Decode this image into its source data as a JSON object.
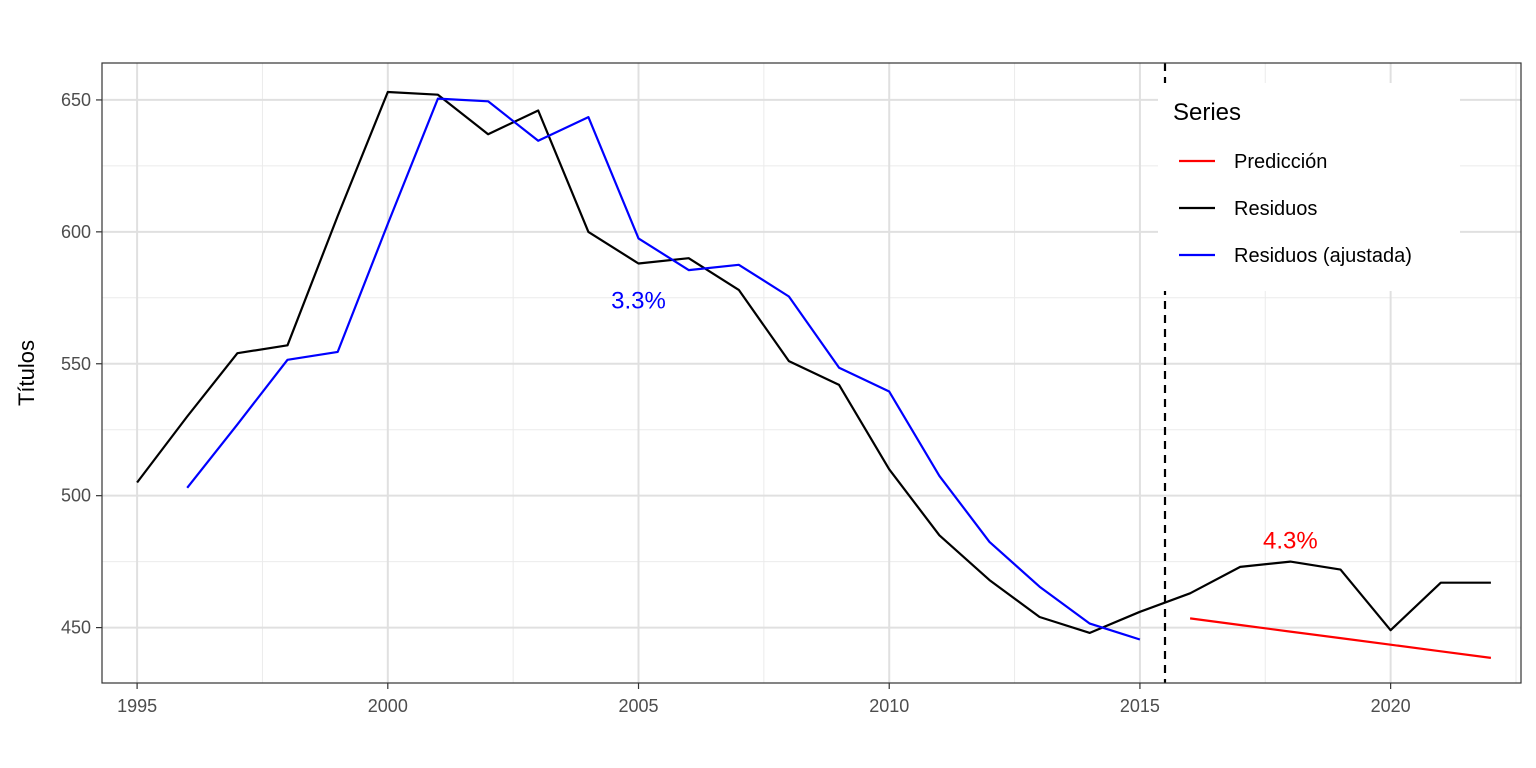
{
  "chart_data": {
    "type": "line",
    "title": "",
    "xlabel": "",
    "ylabel": "Títulos",
    "xlim": [
      1994.3,
      2022.6
    ],
    "ylim": [
      429,
      664
    ],
    "x_ticks": [
      1995,
      2000,
      2005,
      2010,
      2015,
      2020
    ],
    "y_ticks": [
      450,
      500,
      550,
      600,
      650
    ],
    "grid": true,
    "legend": {
      "title": "Series",
      "position": "top-right",
      "entries": [
        {
          "label": "Predicción",
          "color": "#ff0000"
        },
        {
          "label": "Residuos",
          "color": "#000000"
        },
        {
          "label": "Residuos (ajustada)",
          "color": "#0000ff"
        }
      ]
    },
    "series": [
      {
        "name": "Residuos",
        "color": "#000000",
        "points": [
          [
            1995,
            505
          ],
          [
            1996,
            530
          ],
          [
            1997,
            554
          ],
          [
            1998,
            557
          ],
          [
            1999,
            606
          ],
          [
            2000,
            653
          ],
          [
            2001,
            652
          ],
          [
            2002,
            637
          ],
          [
            2003,
            646
          ],
          [
            2004,
            600
          ],
          [
            2005,
            588
          ],
          [
            2006,
            590
          ],
          [
            2007,
            578
          ],
          [
            2008,
            551
          ],
          [
            2009,
            542
          ],
          [
            2010,
            510
          ],
          [
            2011,
            485
          ],
          [
            2012,
            468
          ],
          [
            2013,
            454
          ],
          [
            2014,
            448
          ],
          [
            2015,
            456
          ],
          [
            2016,
            463
          ],
          [
            2017,
            473
          ],
          [
            2018,
            475
          ],
          [
            2019,
            472
          ],
          [
            2020,
            449
          ],
          [
            2021,
            467
          ],
          [
            2022,
            467
          ]
        ]
      },
      {
        "name": "Residuos (ajustada)",
        "color": "#0000ff",
        "points": [
          [
            1996,
            503
          ],
          [
            1997,
            527
          ],
          [
            1998,
            551.5
          ],
          [
            1999,
            554.5
          ],
          [
            2000,
            603
          ],
          [
            2001,
            650.5
          ],
          [
            2002,
            649.5
          ],
          [
            2003,
            634.5
          ],
          [
            2004,
            643.5
          ],
          [
            2005,
            597.5
          ],
          [
            2006,
            585.5
          ],
          [
            2007,
            587.5
          ],
          [
            2008,
            575.5
          ],
          [
            2009,
            548.5
          ],
          [
            2010,
            539.5
          ],
          [
            2011,
            507.5
          ],
          [
            2012,
            482.5
          ],
          [
            2013,
            465.5
          ],
          [
            2014,
            451.5
          ],
          [
            2015,
            445.5
          ]
        ]
      },
      {
        "name": "Predicción",
        "color": "#ff0000",
        "points": [
          [
            2016,
            453.5
          ],
          [
            2017,
            451
          ],
          [
            2018,
            448.5
          ],
          [
            2019,
            446
          ],
          [
            2020,
            443.5
          ],
          [
            2021,
            441
          ],
          [
            2022,
            438.5
          ]
        ]
      }
    ],
    "vline": {
      "x": 2015.5,
      "style": "dashed",
      "color": "#000000"
    },
    "annotations": [
      {
        "text": "3.3%",
        "x": 2005,
        "y": 574,
        "color": "#0000ff"
      },
      {
        "text": "4.3%",
        "x": 2018,
        "y": 483,
        "color": "#ff0000"
      }
    ]
  }
}
